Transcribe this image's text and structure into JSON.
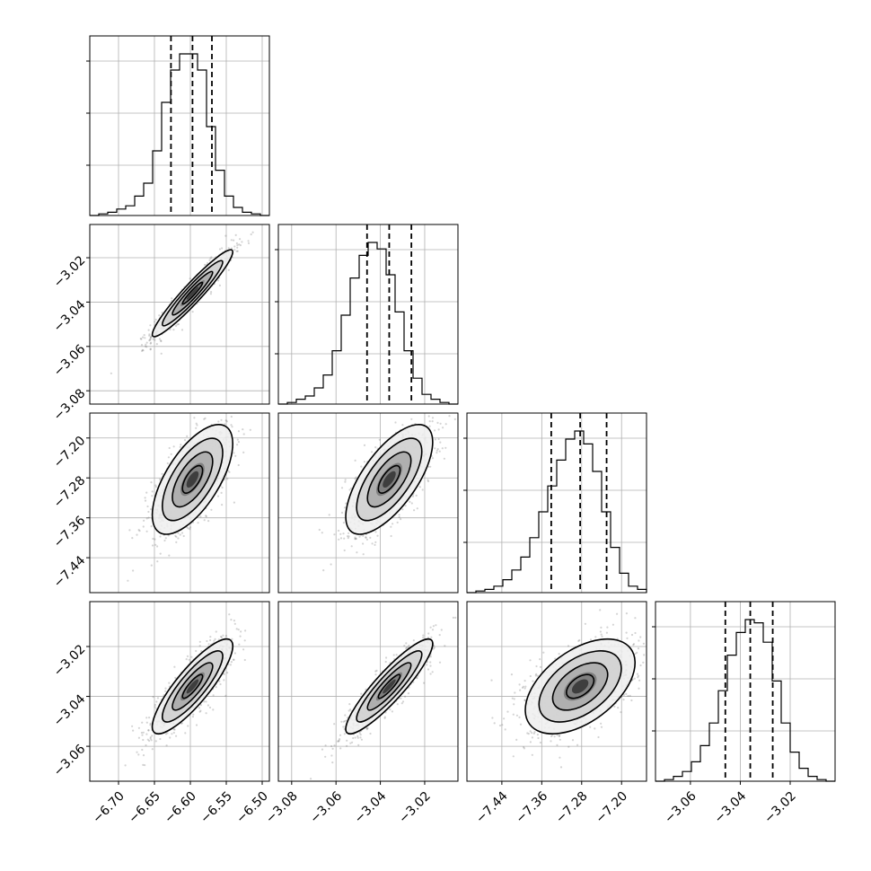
{
  "chart_data": {
    "type": "corner",
    "parameters": [
      {
        "center": -6.597,
        "lo": -6.627,
        "hi": -6.57,
        "range": [
          -6.74,
          -6.49
        ],
        "ticks": [
          -6.7,
          -6.65,
          -6.6,
          -6.55,
          -6.5
        ],
        "tick_labels": [
          "−6.70",
          "−6.65",
          "−6.60",
          "−6.55",
          "−6.50"
        ]
      },
      {
        "center": -3.036,
        "lo": -3.046,
        "hi": -3.026,
        "range": [
          -3.086,
          -3.005
        ],
        "ticks": [
          -3.08,
          -3.06,
          -3.04,
          -3.02
        ],
        "tick_labels": [
          "−3.08",
          "−3.06",
          "−3.04",
          "−3.02"
        ]
      },
      {
        "center": -7.283,
        "lo": -7.341,
        "hi": -7.23,
        "range": [
          -7.51,
          -7.15
        ],
        "ticks": [
          -7.44,
          -7.36,
          -7.28,
          -7.2
        ],
        "tick_labels": [
          "−7.44",
          "−7.36",
          "−7.28",
          "−7.20"
        ]
      },
      {
        "center": -3.036,
        "lo": -3.046,
        "hi": -3.027,
        "range": [
          -3.074,
          -3.002
        ],
        "ticks": [
          -3.06,
          -3.04,
          -3.02
        ],
        "tick_labels": [
          "−3.06",
          "−3.04",
          "−3.02"
        ]
      }
    ],
    "correlations": [
      [
        1,
        0.95,
        0.65,
        0.85
      ],
      [
        0.95,
        1,
        0.68,
        0.9
      ],
      [
        0.65,
        0.68,
        1,
        0.5
      ],
      [
        0.85,
        0.9,
        0.5,
        1
      ]
    ],
    "sigmas": [
      0.028,
      0.0098,
      0.055,
      0.0095
    ],
    "quantiles": [
      0.16,
      0.5,
      0.84
    ],
    "histogram_bins": 20,
    "histograms": [
      [
        0.0,
        0.01,
        0.02,
        0.04,
        0.06,
        0.12,
        0.2,
        0.4,
        0.7,
        0.9,
        1.0,
        1.0,
        0.9,
        0.55,
        0.28,
        0.12,
        0.05,
        0.02,
        0.01,
        0.0
      ],
      [
        0.0,
        0.01,
        0.03,
        0.05,
        0.1,
        0.18,
        0.33,
        0.55,
        0.78,
        0.92,
        1.0,
        0.96,
        0.8,
        0.57,
        0.33,
        0.16,
        0.06,
        0.03,
        0.01,
        0.0
      ],
      [
        0.0,
        0.01,
        0.02,
        0.04,
        0.08,
        0.14,
        0.22,
        0.34,
        0.5,
        0.66,
        0.82,
        0.95,
        1.0,
        0.92,
        0.75,
        0.5,
        0.28,
        0.12,
        0.04,
        0.02
      ],
      [
        0.0,
        0.01,
        0.03,
        0.06,
        0.12,
        0.22,
        0.36,
        0.56,
        0.78,
        0.92,
        1.0,
        0.98,
        0.86,
        0.62,
        0.36,
        0.18,
        0.08,
        0.03,
        0.01,
        0.0
      ]
    ],
    "contour_levels_sigma": [
      0.5,
      1.0,
      1.5,
      2.0
    ],
    "grid": true,
    "colors": {
      "line": "#000000",
      "points": "#555555",
      "grid": "#b0b0b0"
    }
  }
}
